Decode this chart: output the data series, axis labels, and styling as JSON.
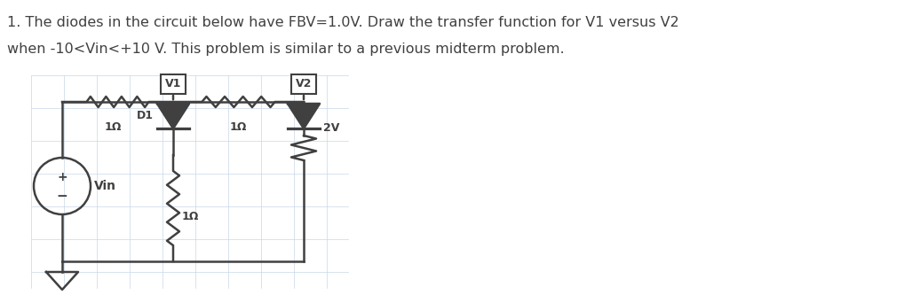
{
  "title_line1": "1. The diodes in the circuit below have FBV=1.0V. Draw the transfer function for V1 versus V2",
  "title_line2": "when -10<Vin<+10 V. This problem is similar to a previous midterm problem.",
  "text_color": "#404040",
  "background_color": "#ffffff",
  "grid_color": "#c8d8e8",
  "circuit_color": "#404040",
  "fig_width": 10.18,
  "fig_height": 3.33,
  "dpi": 100,
  "labels": {
    "V1": "V1",
    "V2": "V2",
    "D1": "D1",
    "Vin": "Vin",
    "R1": "1Ω",
    "R2": "1Ω",
    "R3": "1Ω",
    "V_2V": "2V"
  }
}
